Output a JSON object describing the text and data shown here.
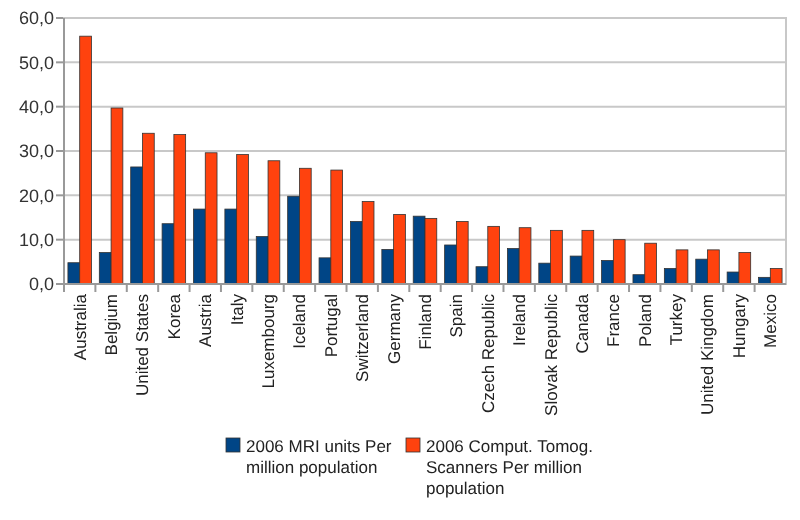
{
  "chart_data": {
    "type": "bar",
    "categories": [
      "Australia",
      "Belgium",
      "United States",
      "Korea",
      "Austria",
      "Italy",
      "Luxembourg",
      "Iceland",
      "Portugal",
      "Switzerland",
      "Germany",
      "Finland",
      "Spain",
      "Czech Republic",
      "Ireland",
      "Slovak Republic",
      "Canada",
      "France",
      "Poland",
      "Turkey",
      "United Kingdom",
      "Hungary",
      "Mexico"
    ],
    "series": [
      {
        "name": "2006 MRI units Per million population",
        "color": "#004586",
        "values": [
          4.8,
          7.1,
          26.4,
          13.6,
          16.9,
          16.9,
          10.7,
          19.8,
          5.9,
          14.1,
          7.8,
          15.3,
          8.8,
          3.9,
          8.0,
          4.7,
          6.3,
          5.3,
          2.1,
          3.5,
          5.6,
          2.7,
          1.5
        ]
      },
      {
        "name": "2006 Comput. Tomog. Scanners Per million population",
        "color": "#ff420e",
        "values": [
          55.9,
          39.7,
          34.0,
          33.7,
          29.6,
          29.2,
          27.8,
          26.1,
          25.7,
          18.6,
          15.7,
          14.8,
          14.1,
          13.0,
          12.7,
          12.1,
          12.1,
          10.0,
          9.2,
          7.7,
          7.7,
          7.1,
          3.5
        ]
      }
    ],
    "ylim": [
      0,
      60
    ],
    "yticks": [
      {
        "value": 0,
        "label": "0,0"
      },
      {
        "value": 10,
        "label": "10,0"
      },
      {
        "value": 20,
        "label": "20,0"
      },
      {
        "value": 30,
        "label": "30,0"
      },
      {
        "value": 40,
        "label": "40,0"
      },
      {
        "value": 50,
        "label": "50,0"
      },
      {
        "value": 60,
        "label": "60,0"
      }
    ],
    "grid": "y",
    "legend": "bottom"
  }
}
